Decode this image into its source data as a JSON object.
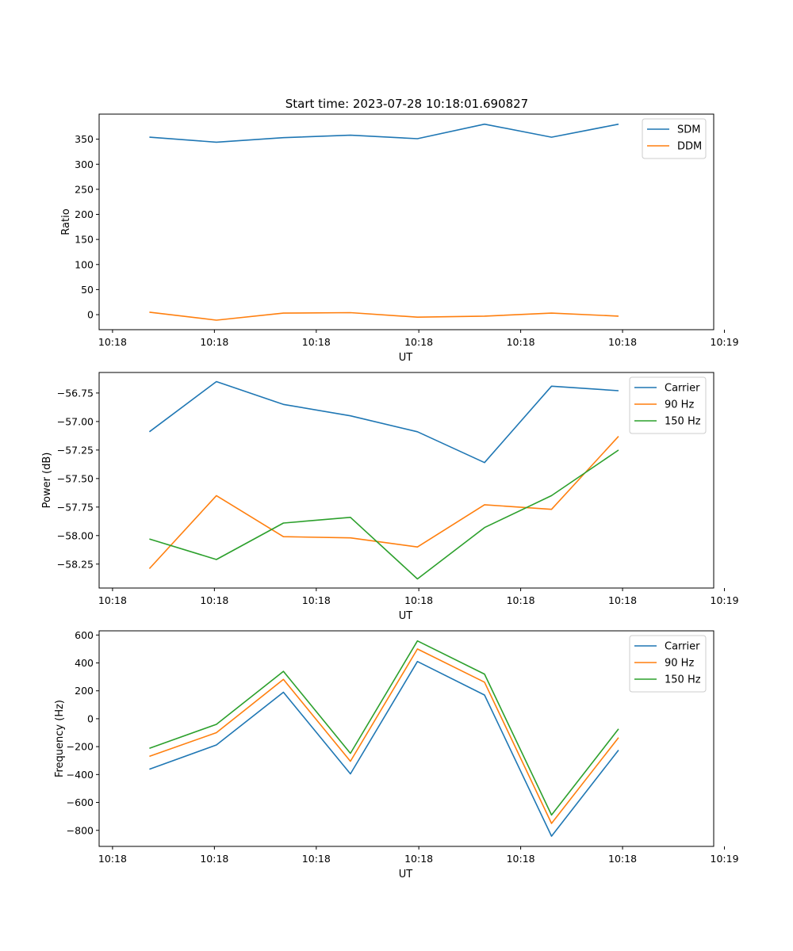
{
  "figure_title": "Start time: 2023-07-28 10:18:01.690827",
  "colors": {
    "blue": "#1f77b4",
    "orange": "#ff7f0e",
    "green": "#2ca02c"
  },
  "chart_data": [
    {
      "type": "line",
      "title": "Start time: 2023-07-28 10:18:01.690827",
      "xlabel": "UT",
      "ylabel": "Ratio",
      "x": [
        1,
        2,
        3,
        4,
        5,
        6,
        7,
        8
      ],
      "xlim": [
        0.25,
        9.42
      ],
      "x_ticks": [
        0.45,
        1.97,
        3.49,
        5.02,
        6.54,
        8.06,
        9.58
      ],
      "x_tick_labels": [
        "10:18",
        "10:18",
        "10:18",
        "10:18",
        "10:18",
        "10:18",
        "10:19"
      ],
      "ylim": [
        -30,
        400
      ],
      "y_ticks": [
        0,
        50,
        100,
        150,
        200,
        250,
        300,
        350
      ],
      "y_tick_labels": [
        "0",
        "50",
        "100",
        "150",
        "200",
        "250",
        "300",
        "350"
      ],
      "legend_position": "top-right",
      "series": [
        {
          "name": "SDM",
          "color": "#1f77b4",
          "values": [
            354,
            344,
            353,
            358,
            351,
            380,
            354,
            380
          ]
        },
        {
          "name": "DDM",
          "color": "#ff7f0e",
          "values": [
            5,
            -11,
            3,
            4,
            -5,
            -3,
            3,
            -3
          ]
        }
      ]
    },
    {
      "type": "line",
      "title": "",
      "xlabel": "UT",
      "ylabel": "Power (dB)",
      "x": [
        1,
        2,
        3,
        4,
        5,
        6,
        7,
        8
      ],
      "xlim": [
        0.25,
        9.42
      ],
      "x_ticks": [
        0.45,
        1.97,
        3.49,
        5.02,
        6.54,
        8.06,
        9.58
      ],
      "x_tick_labels": [
        "10:18",
        "10:18",
        "10:18",
        "10:18",
        "10:18",
        "10:18",
        "10:19"
      ],
      "ylim": [
        -58.46,
        -56.57
      ],
      "y_ticks": [
        -58.25,
        -58.0,
        -57.75,
        -57.5,
        -57.25,
        -57.0,
        -56.75
      ],
      "y_tick_labels": [
        "−58.25",
        "−58.00",
        "−57.75",
        "−57.50",
        "−57.25",
        "−57.00",
        "−56.75"
      ],
      "legend_position": "top-right",
      "series": [
        {
          "name": "Carrier",
          "color": "#1f77b4",
          "values": [
            -57.09,
            -56.65,
            -56.85,
            -56.95,
            -57.09,
            -57.36,
            -56.69,
            -56.73
          ]
        },
        {
          "name": "90 Hz",
          "color": "#ff7f0e",
          "values": [
            -58.29,
            -57.65,
            -58.01,
            -58.02,
            -58.1,
            -57.73,
            -57.77,
            -57.13
          ]
        },
        {
          "name": "150 Hz",
          "color": "#2ca02c",
          "values": [
            -58.03,
            -58.21,
            -57.89,
            -57.84,
            -58.38,
            -57.93,
            -57.65,
            -57.25
          ]
        }
      ]
    },
    {
      "type": "line",
      "title": "",
      "xlabel": "UT",
      "ylabel": "Frequency (Hz)",
      "x": [
        1,
        2,
        3,
        4,
        5,
        6,
        7,
        8
      ],
      "xlim": [
        0.25,
        9.42
      ],
      "x_ticks": [
        0.45,
        1.97,
        3.49,
        5.02,
        6.54,
        8.06,
        9.58
      ],
      "x_tick_labels": [
        "10:18",
        "10:18",
        "10:18",
        "10:18",
        "10:18",
        "10:18",
        "10:19"
      ],
      "ylim": [
        -915,
        630
      ],
      "y_ticks": [
        -800,
        -600,
        -400,
        -200,
        0,
        200,
        400,
        600
      ],
      "y_tick_labels": [
        "−800",
        "−600",
        "−400",
        "−200",
        "0",
        "200",
        "400",
        "600"
      ],
      "legend_position": "top-right",
      "series": [
        {
          "name": "Carrier",
          "color": "#1f77b4",
          "values": [
            -362,
            -188,
            190,
            -395,
            410,
            170,
            -842,
            -225
          ]
        },
        {
          "name": "90 Hz",
          "color": "#ff7f0e",
          "values": [
            -270,
            -100,
            282,
            -305,
            500,
            262,
            -750,
            -135
          ]
        },
        {
          "name": "150 Hz",
          "color": "#2ca02c",
          "values": [
            -212,
            -40,
            340,
            -248,
            558,
            320,
            -690,
            -73
          ]
        }
      ]
    }
  ]
}
